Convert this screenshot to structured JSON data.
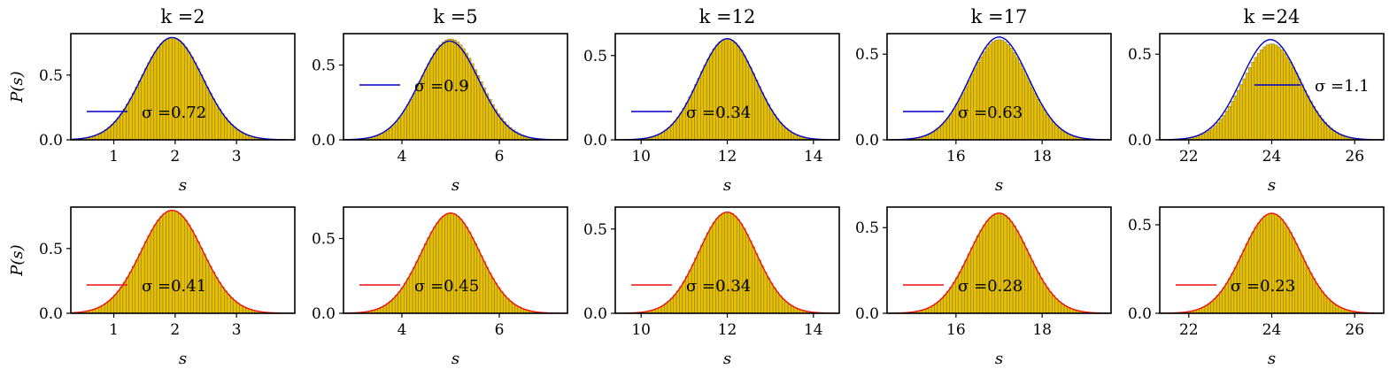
{
  "figure": {
    "ylabel": "P(s)",
    "xlabel": "s"
  },
  "chart_data": [
    {
      "type": "bar",
      "row": 1,
      "title": "k =2",
      "xlabel": "s",
      "ylabel": "P(s)",
      "xlim": [
        0.3,
        3.95
      ],
      "ylim": [
        0,
        0.82
      ],
      "xticks": [
        1,
        2,
        3
      ],
      "yticks": [
        0.0,
        0.5
      ],
      "yticklabels": [
        "0.0",
        "0.5"
      ],
      "histogram": {
        "mean": 1.95,
        "std": 0.5,
        "peak": 0.79,
        "bin_width": 0.05,
        "color": "#e6c000"
      },
      "fit": {
        "label": "σ =0.72",
        "mean": 1.95,
        "std": 0.5,
        "peak": 0.79,
        "color": "#0000cc"
      },
      "legend": "left"
    },
    {
      "type": "bar",
      "row": 1,
      "title": "k =5",
      "xlabel": "s",
      "ylabel": "",
      "xlim": [
        2.8,
        7.4
      ],
      "ylim": [
        0,
        0.71
      ],
      "xticks": [
        4,
        6
      ],
      "yticks": [
        0.0,
        0.5
      ],
      "yticklabels": [
        "0.0",
        "0.5"
      ],
      "histogram": {
        "mean": 5.0,
        "std": 0.6,
        "peak": 0.675,
        "bin_width": 0.06,
        "color": "#e6c000"
      },
      "fit": {
        "label": "σ =0.9",
        "mean": 4.98,
        "std": 0.6,
        "peak": 0.66,
        "color": "#0000cc"
      },
      "legend": "upper-left"
    },
    {
      "type": "bar",
      "row": 1,
      "title": "k =12",
      "xlabel": "s",
      "ylabel": "",
      "xlim": [
        9.4,
        14.6
      ],
      "ylim": [
        0,
        0.63
      ],
      "xticks": [
        10,
        12,
        14
      ],
      "yticks": [
        0.0,
        0.5
      ],
      "yticklabels": [
        "0.0",
        "0.5"
      ],
      "histogram": {
        "mean": 12.0,
        "std": 0.66,
        "peak": 0.6,
        "bin_width": 0.07,
        "color": "#e6c000"
      },
      "fit": {
        "label": "σ =0.34",
        "mean": 12.0,
        "std": 0.66,
        "peak": 0.6,
        "color": "#0000cc"
      },
      "legend": "left"
    },
    {
      "type": "bar",
      "row": 1,
      "title": "k =17",
      "xlabel": "s",
      "ylabel": "",
      "xlim": [
        14.4,
        19.6
      ],
      "ylim": [
        0,
        0.62
      ],
      "xticks": [
        16,
        18
      ],
      "yticks": [
        0.0,
        0.5
      ],
      "yticklabels": [
        "0.0",
        "0.5"
      ],
      "histogram": {
        "mean": 17.0,
        "std": 0.68,
        "peak": 0.585,
        "bin_width": 0.07,
        "color": "#e6c000"
      },
      "fit": {
        "label": "σ =0.63",
        "mean": 17.0,
        "std": 0.68,
        "peak": 0.6,
        "color": "#0000cc"
      },
      "legend": "left"
    },
    {
      "type": "bar",
      "row": 1,
      "title": "k =24",
      "xlabel": "s",
      "ylabel": "",
      "xlim": [
        21.3,
        26.7
      ],
      "ylim": [
        0,
        0.62
      ],
      "xticks": [
        22,
        24,
        26
      ],
      "yticks": [
        0.0,
        0.5
      ],
      "yticklabels": [
        "0.0",
        "0.5"
      ],
      "histogram": {
        "mean": 24.0,
        "std": 0.7,
        "peak": 0.56,
        "bin_width": 0.07,
        "color": "#e6c000"
      },
      "fit": {
        "label": "σ =1.1",
        "mean": 23.97,
        "std": 0.7,
        "peak": 0.585,
        "color": "#0000cc"
      },
      "legend": "right"
    },
    {
      "type": "bar",
      "row": 2,
      "title": "",
      "xlabel": "s",
      "ylabel": "P(s)",
      "xlim": [
        0.3,
        3.95
      ],
      "ylim": [
        0,
        0.82
      ],
      "xticks": [
        1,
        2,
        3
      ],
      "yticks": [
        0.0,
        0.5
      ],
      "yticklabels": [
        "0.0",
        "0.5"
      ],
      "histogram": {
        "mean": 1.95,
        "std": 0.5,
        "peak": 0.795,
        "bin_width": 0.05,
        "color": "#e6c000"
      },
      "fit": {
        "label": "σ =0.41",
        "mean": 1.95,
        "std": 0.5,
        "peak": 0.795,
        "color": "#ee1111"
      },
      "legend": "left"
    },
    {
      "type": "bar",
      "row": 2,
      "title": "",
      "xlabel": "s",
      "ylabel": "",
      "xlim": [
        2.8,
        7.4
      ],
      "ylim": [
        0,
        0.71
      ],
      "xticks": [
        4,
        6
      ],
      "yticks": [
        0.0,
        0.5
      ],
      "yticklabels": [
        "0.0",
        "0.5"
      ],
      "histogram": {
        "mean": 5.0,
        "std": 0.6,
        "peak": 0.67,
        "bin_width": 0.06,
        "color": "#e6c000"
      },
      "fit": {
        "label": "σ =0.45",
        "mean": 5.0,
        "std": 0.6,
        "peak": 0.67,
        "color": "#ee1111"
      },
      "legend": "left"
    },
    {
      "type": "bar",
      "row": 2,
      "title": "",
      "xlabel": "s",
      "ylabel": "",
      "xlim": [
        9.4,
        14.6
      ],
      "ylim": [
        0,
        0.63
      ],
      "xticks": [
        10,
        12,
        14
      ],
      "yticks": [
        0.0,
        0.5
      ],
      "yticklabels": [
        "0.0",
        "0.5"
      ],
      "histogram": {
        "mean": 12.0,
        "std": 0.66,
        "peak": 0.6,
        "bin_width": 0.07,
        "color": "#e6c000"
      },
      "fit": {
        "label": "σ =0.34",
        "mean": 12.0,
        "std": 0.66,
        "peak": 0.6,
        "color": "#ee1111"
      },
      "legend": "left"
    },
    {
      "type": "bar",
      "row": 2,
      "title": "",
      "xlabel": "s",
      "ylabel": "",
      "xlim": [
        14.4,
        19.6
      ],
      "ylim": [
        0,
        0.62
      ],
      "xticks": [
        16,
        18
      ],
      "yticks": [
        0.0,
        0.5
      ],
      "yticklabels": [
        "0.0",
        "0.5"
      ],
      "histogram": {
        "mean": 17.0,
        "std": 0.68,
        "peak": 0.585,
        "bin_width": 0.07,
        "color": "#e6c000"
      },
      "fit": {
        "label": "σ =0.28",
        "mean": 17.0,
        "std": 0.68,
        "peak": 0.585,
        "color": "#ee1111"
      },
      "legend": "left"
    },
    {
      "type": "bar",
      "row": 2,
      "title": "",
      "xlabel": "s",
      "ylabel": "",
      "xlim": [
        21.3,
        26.7
      ],
      "ylim": [
        0,
        0.6
      ],
      "xticks": [
        22,
        24,
        26
      ],
      "yticks": [
        0.0,
        0.5
      ],
      "yticklabels": [
        "0.0",
        "0.5"
      ],
      "histogram": {
        "mean": 24.0,
        "std": 0.7,
        "peak": 0.565,
        "bin_width": 0.07,
        "color": "#e6c000"
      },
      "fit": {
        "label": "σ =0.23",
        "mean": 24.0,
        "std": 0.7,
        "peak": 0.565,
        "color": "#ee1111"
      },
      "legend": "left"
    }
  ]
}
